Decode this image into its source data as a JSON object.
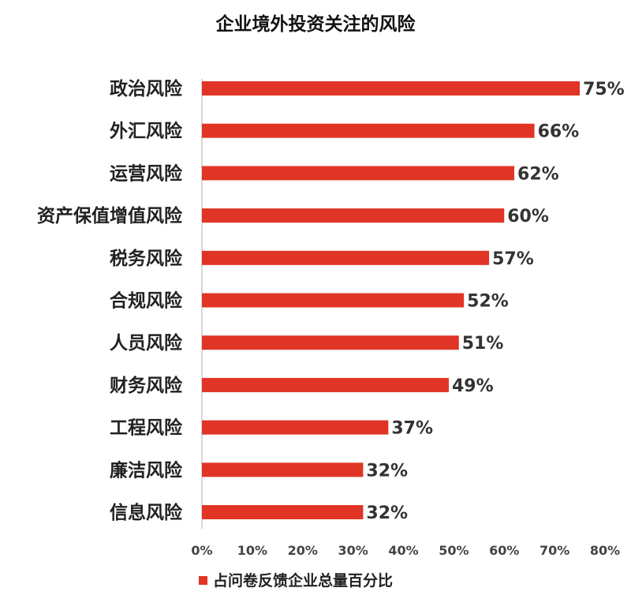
{
  "chart_data": {
    "type": "bar",
    "orientation": "horizontal",
    "title": "企业境外投资关注的风险",
    "categories": [
      "政治风险",
      "外汇风险",
      "运营风险",
      "资产保值增值风险",
      "税务风险",
      "合规风险",
      "人员风险",
      "财务风险",
      "工程风险",
      "廉洁风险",
      "信息风险"
    ],
    "series": [
      {
        "name": "占问卷反馈企业总量百分比",
        "values": [
          75,
          66,
          62,
          60,
          57,
          52,
          51,
          49,
          37,
          32,
          32
        ],
        "value_labels": [
          "75%",
          "66%",
          "62%",
          "60%",
          "57%",
          "52%",
          "51%",
          "49%",
          "37%",
          "32%",
          "32%"
        ],
        "color": "#e03526"
      }
    ],
    "xlim": [
      0,
      80
    ],
    "x_ticks": [
      0,
      10,
      20,
      30,
      40,
      50,
      60,
      70,
      80
    ],
    "x_tick_labels": [
      "0%",
      "10%",
      "20%",
      "30%",
      "40%",
      "50%",
      "60%",
      "70%",
      "80%"
    ],
    "xlabel": "",
    "ylabel": "",
    "grid": false,
    "legend_position": "bottom-center"
  }
}
